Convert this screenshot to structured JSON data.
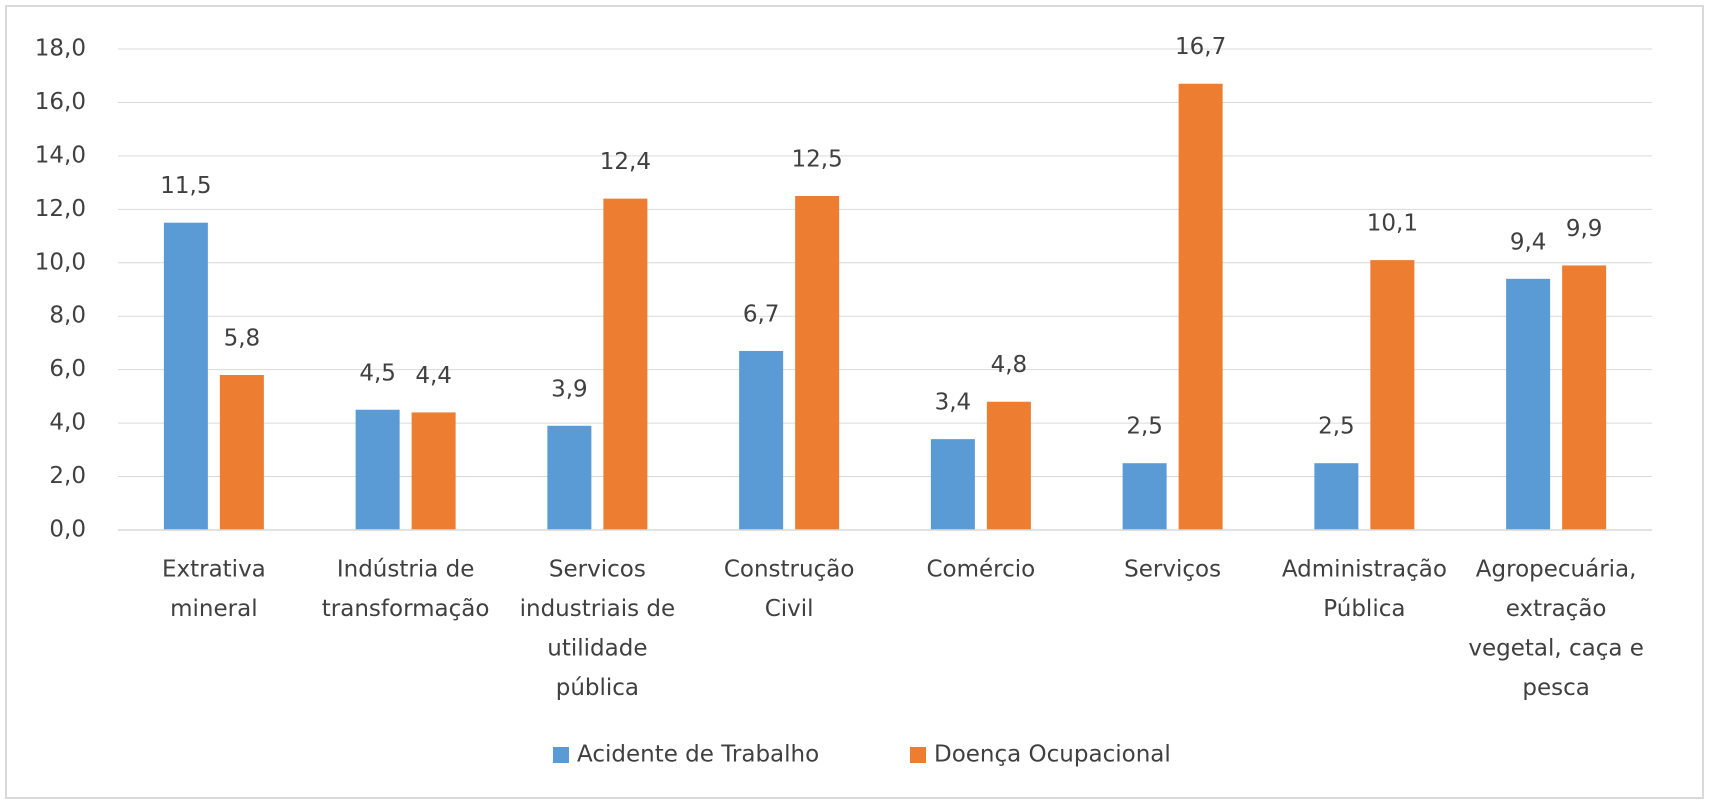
{
  "chart_data": {
    "type": "bar",
    "categories": [
      [
        "Extrativa",
        "mineral"
      ],
      [
        "Indústria de",
        "transformação"
      ],
      [
        "Servicos",
        "industriais de",
        "utilidade",
        "pública"
      ],
      [
        "Construção",
        "Civil"
      ],
      [
        "Comércio"
      ],
      [
        "Serviços"
      ],
      [
        "Administração",
        "Pública"
      ],
      [
        "Agropecuária,",
        "extração",
        "vegetal, caça e",
        "pesca"
      ]
    ],
    "series": [
      {
        "name": "Acidente de Trabalho",
        "color": "#5b9bd5",
        "values": [
          11.5,
          4.5,
          3.9,
          6.7,
          3.4,
          2.5,
          2.5,
          9.4
        ],
        "value_labels": [
          "11,5",
          "4,5",
          "3,9",
          "6,7",
          "3,4",
          "2,5",
          "2,5",
          "9,4"
        ]
      },
      {
        "name": "Doença Ocupacional",
        "color": "#ed7d31",
        "values": [
          5.8,
          4.4,
          12.4,
          12.5,
          4.8,
          16.7,
          10.1,
          9.9
        ],
        "value_labels": [
          "5,8",
          "4,4",
          "12,4",
          "12,5",
          "4,8",
          "16,7",
          "10,1",
          "9,9"
        ]
      }
    ],
    "ylim": [
      0,
      18
    ],
    "yticks": [
      {
        "value": 0,
        "label": "0,0"
      },
      {
        "value": 2,
        "label": "2,0"
      },
      {
        "value": 4,
        "label": "4,0"
      },
      {
        "value": 6,
        "label": "6,0"
      },
      {
        "value": 8,
        "label": "8,0"
      },
      {
        "value": 10,
        "label": "10,0"
      },
      {
        "value": 12,
        "label": "12,0"
      },
      {
        "value": 14,
        "label": "14,0"
      },
      {
        "value": 16,
        "label": "16,0"
      },
      {
        "value": 18,
        "label": "18,0"
      }
    ],
    "grid": true,
    "legend": "bottom"
  }
}
